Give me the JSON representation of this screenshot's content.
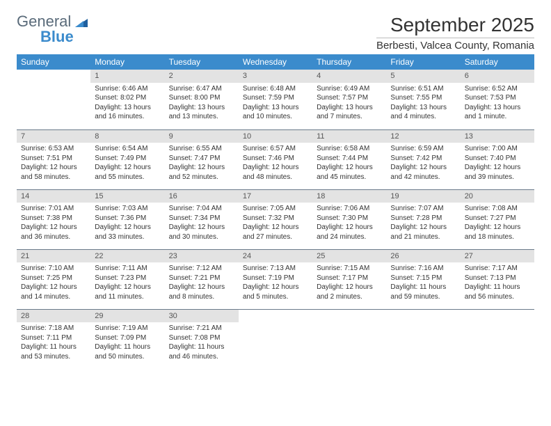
{
  "brand": {
    "line1": "General",
    "line2": "Blue"
  },
  "title": "September 2025",
  "location": "Berbesti, Valcea County, Romania",
  "colors": {
    "header_bg": "#3b8bcc",
    "header_fg": "#ffffff",
    "daynum_bg": "#e3e3e3",
    "daynum_fg": "#555555",
    "rule": "#6a7a8a",
    "brand_gray": "#5a6b7a",
    "brand_blue": "#3b8bcc"
  },
  "weekdays": [
    "Sunday",
    "Monday",
    "Tuesday",
    "Wednesday",
    "Thursday",
    "Friday",
    "Saturday"
  ],
  "weeks": [
    [
      null,
      {
        "n": "1",
        "sr": "6:46 AM",
        "ss": "8:02 PM",
        "dl": "13 hours and 16 minutes."
      },
      {
        "n": "2",
        "sr": "6:47 AM",
        "ss": "8:00 PM",
        "dl": "13 hours and 13 minutes."
      },
      {
        "n": "3",
        "sr": "6:48 AM",
        "ss": "7:59 PM",
        "dl": "13 hours and 10 minutes."
      },
      {
        "n": "4",
        "sr": "6:49 AM",
        "ss": "7:57 PM",
        "dl": "13 hours and 7 minutes."
      },
      {
        "n": "5",
        "sr": "6:51 AM",
        "ss": "7:55 PM",
        "dl": "13 hours and 4 minutes."
      },
      {
        "n": "6",
        "sr": "6:52 AM",
        "ss": "7:53 PM",
        "dl": "13 hours and 1 minute."
      }
    ],
    [
      {
        "n": "7",
        "sr": "6:53 AM",
        "ss": "7:51 PM",
        "dl": "12 hours and 58 minutes."
      },
      {
        "n": "8",
        "sr": "6:54 AM",
        "ss": "7:49 PM",
        "dl": "12 hours and 55 minutes."
      },
      {
        "n": "9",
        "sr": "6:55 AM",
        "ss": "7:47 PM",
        "dl": "12 hours and 52 minutes."
      },
      {
        "n": "10",
        "sr": "6:57 AM",
        "ss": "7:46 PM",
        "dl": "12 hours and 48 minutes."
      },
      {
        "n": "11",
        "sr": "6:58 AM",
        "ss": "7:44 PM",
        "dl": "12 hours and 45 minutes."
      },
      {
        "n": "12",
        "sr": "6:59 AM",
        "ss": "7:42 PM",
        "dl": "12 hours and 42 minutes."
      },
      {
        "n": "13",
        "sr": "7:00 AM",
        "ss": "7:40 PM",
        "dl": "12 hours and 39 minutes."
      }
    ],
    [
      {
        "n": "14",
        "sr": "7:01 AM",
        "ss": "7:38 PM",
        "dl": "12 hours and 36 minutes."
      },
      {
        "n": "15",
        "sr": "7:03 AM",
        "ss": "7:36 PM",
        "dl": "12 hours and 33 minutes."
      },
      {
        "n": "16",
        "sr": "7:04 AM",
        "ss": "7:34 PM",
        "dl": "12 hours and 30 minutes."
      },
      {
        "n": "17",
        "sr": "7:05 AM",
        "ss": "7:32 PM",
        "dl": "12 hours and 27 minutes."
      },
      {
        "n": "18",
        "sr": "7:06 AM",
        "ss": "7:30 PM",
        "dl": "12 hours and 24 minutes."
      },
      {
        "n": "19",
        "sr": "7:07 AM",
        "ss": "7:28 PM",
        "dl": "12 hours and 21 minutes."
      },
      {
        "n": "20",
        "sr": "7:08 AM",
        "ss": "7:27 PM",
        "dl": "12 hours and 18 minutes."
      }
    ],
    [
      {
        "n": "21",
        "sr": "7:10 AM",
        "ss": "7:25 PM",
        "dl": "12 hours and 14 minutes."
      },
      {
        "n": "22",
        "sr": "7:11 AM",
        "ss": "7:23 PM",
        "dl": "12 hours and 11 minutes."
      },
      {
        "n": "23",
        "sr": "7:12 AM",
        "ss": "7:21 PM",
        "dl": "12 hours and 8 minutes."
      },
      {
        "n": "24",
        "sr": "7:13 AM",
        "ss": "7:19 PM",
        "dl": "12 hours and 5 minutes."
      },
      {
        "n": "25",
        "sr": "7:15 AM",
        "ss": "7:17 PM",
        "dl": "12 hours and 2 minutes."
      },
      {
        "n": "26",
        "sr": "7:16 AM",
        "ss": "7:15 PM",
        "dl": "11 hours and 59 minutes."
      },
      {
        "n": "27",
        "sr": "7:17 AM",
        "ss": "7:13 PM",
        "dl": "11 hours and 56 minutes."
      }
    ],
    [
      {
        "n": "28",
        "sr": "7:18 AM",
        "ss": "7:11 PM",
        "dl": "11 hours and 53 minutes."
      },
      {
        "n": "29",
        "sr": "7:19 AM",
        "ss": "7:09 PM",
        "dl": "11 hours and 50 minutes."
      },
      {
        "n": "30",
        "sr": "7:21 AM",
        "ss": "7:08 PM",
        "dl": "11 hours and 46 minutes."
      },
      null,
      null,
      null,
      null
    ]
  ],
  "labels": {
    "sunrise": "Sunrise:",
    "sunset": "Sunset:",
    "daylight": "Daylight:"
  }
}
